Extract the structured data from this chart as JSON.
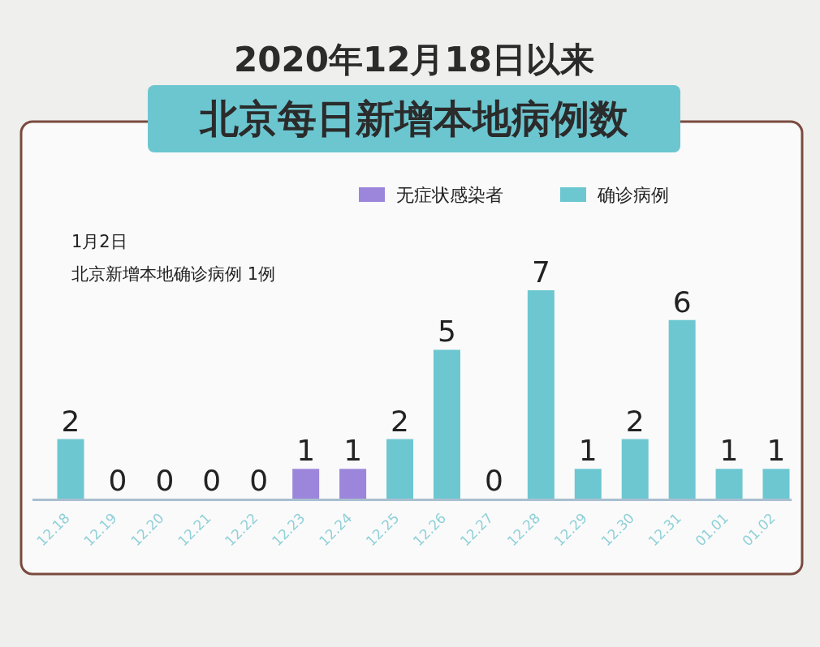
{
  "chart_data": {
    "type": "bar",
    "title": "2020年12月18日以来",
    "subtitle": "北京每日新增本地病例数",
    "categories": [
      "12.18",
      "12.19",
      "12.20",
      "12.21",
      "12.22",
      "12.23",
      "12.24",
      "12.25",
      "12.26",
      "12.27",
      "12.28",
      "12.29",
      "12.30",
      "12.31",
      "01.01",
      "01.02"
    ],
    "series": [
      {
        "name": "无症状感染者",
        "color": "#9c86dc",
        "values": [
          null,
          null,
          null,
          null,
          null,
          1,
          1,
          null,
          null,
          null,
          null,
          null,
          null,
          null,
          null,
          null
        ]
      },
      {
        "name": "确诊病例",
        "color": "#6cc7d1",
        "values": [
          2,
          0,
          0,
          0,
          0,
          null,
          null,
          2,
          5,
          0,
          7,
          1,
          2,
          6,
          1,
          1
        ]
      }
    ],
    "data_labels": true,
    "legend": "top right",
    "annotations": [
      "1月2日",
      "北京新增本地确诊病例 1例"
    ]
  }
}
